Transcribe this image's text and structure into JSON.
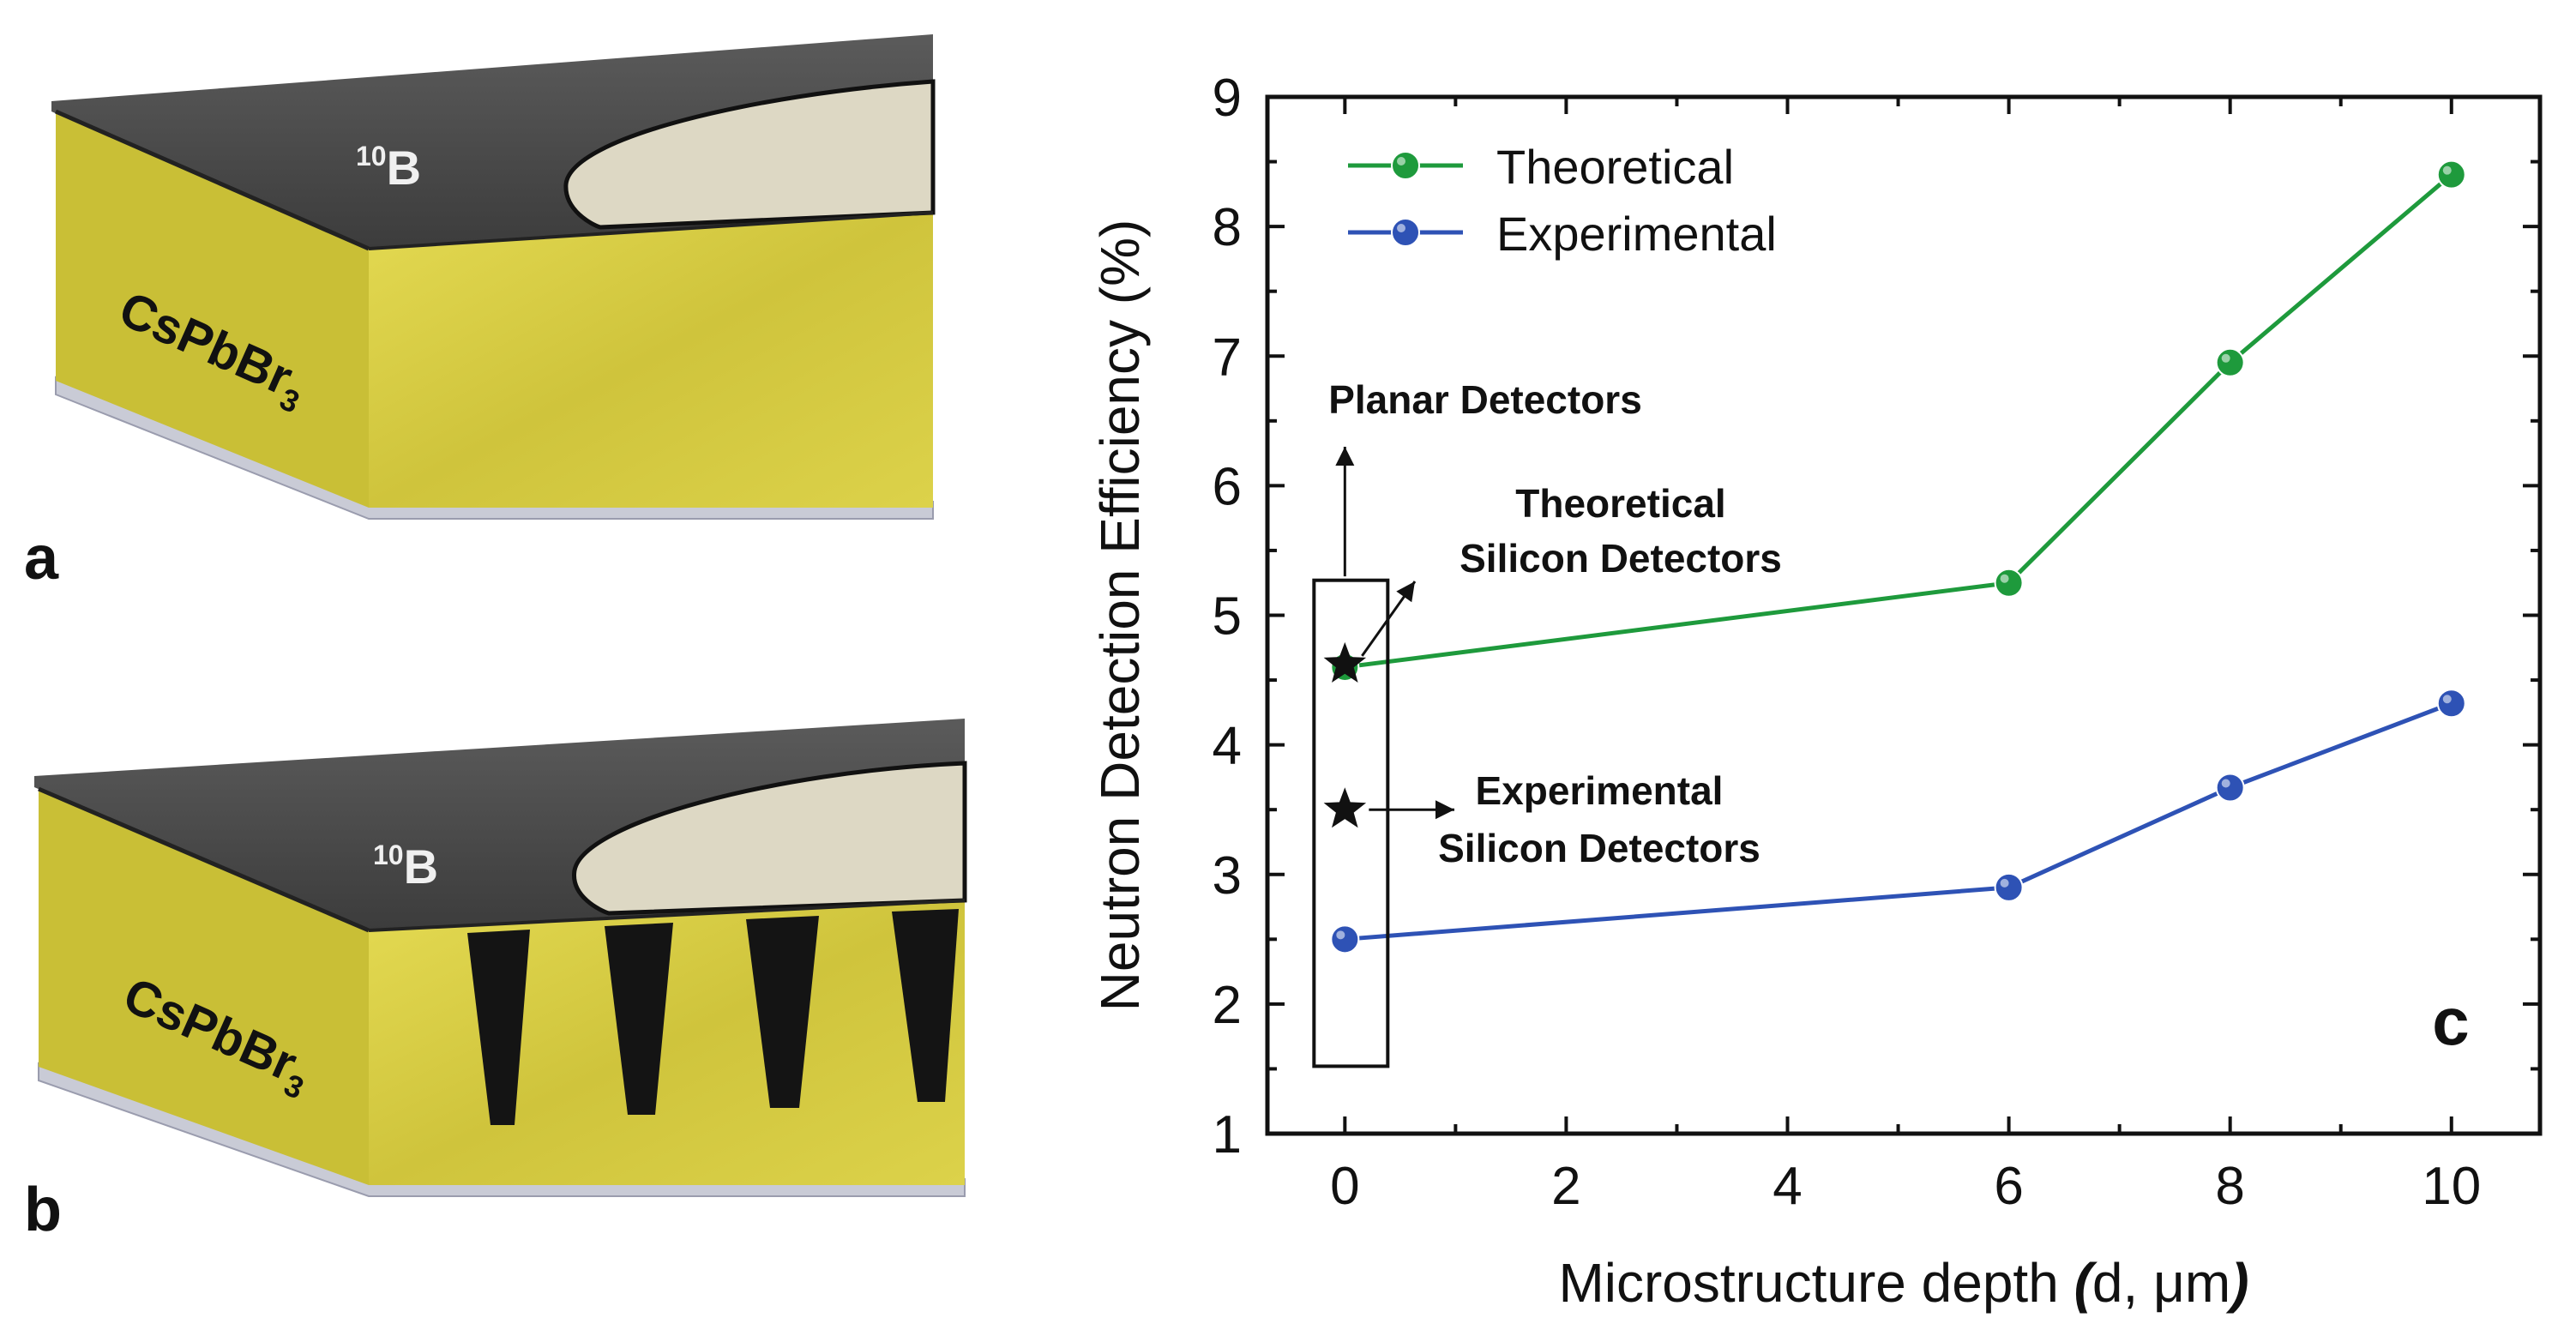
{
  "panels": {
    "a": {
      "letter": "a",
      "layer_top": "10B",
      "layer_top_mass": "10",
      "layer_top_symbol": "B",
      "layer_body": "CsPbBr3",
      "layer_body_main": "CsPbBr",
      "layer_body_sub": "3"
    },
    "b": {
      "letter": "b",
      "layer_top": "10B",
      "layer_top_mass": "10",
      "layer_top_symbol": "B",
      "layer_body": "CsPbBr3",
      "layer_body_main": "CsPbBr",
      "layer_body_sub": "3"
    },
    "c": {
      "letter": "c"
    }
  },
  "colors": {
    "theoretical": "#1e9a3c",
    "experimental": "#2e52b5",
    "perovskite": "#d8cf46",
    "boron": "#4a4a4a",
    "trench": "#141414"
  },
  "chart_data": {
    "type": "line",
    "xlabel": "Microstructure depth (d, μm)",
    "xlabel_main": "Microstructure depth ",
    "xlabel_open": "(",
    "xlabel_inner": "d, μm",
    "xlabel_close": ")",
    "ylabel": "Neutron Detection Efficiency (%)",
    "xlim": [
      -0.7,
      10.8
    ],
    "ylim": [
      1,
      9
    ],
    "xticks": [
      0,
      2,
      4,
      6,
      8,
      10
    ],
    "yticks": [
      1,
      2,
      3,
      4,
      5,
      6,
      7,
      8,
      9
    ],
    "legend_position": "top-left",
    "grid": false,
    "series": [
      {
        "name": "Theoretical",
        "x": [
          0,
          6,
          8,
          10
        ],
        "y": [
          4.6,
          5.25,
          6.95,
          8.4
        ],
        "color": "#1e9a3c"
      },
      {
        "name": "Experimental",
        "x": [
          0,
          6,
          8,
          10
        ],
        "y": [
          2.5,
          2.9,
          3.67,
          4.32
        ],
        "color": "#2e52b5"
      }
    ],
    "reference_points": [
      {
        "label": "Theoretical Silicon Detectors",
        "line1": "Theoretical",
        "line2": "Silicon Detectors",
        "x": 0,
        "y": 4.62,
        "marker": "star"
      },
      {
        "label": "Experimental Silicon Detectors",
        "line1": "Experimental",
        "line2": "Silicon Detectors",
        "x": 0,
        "y": 3.5,
        "marker": "star"
      }
    ],
    "annotations": {
      "planar": "Planar Detectors"
    }
  }
}
